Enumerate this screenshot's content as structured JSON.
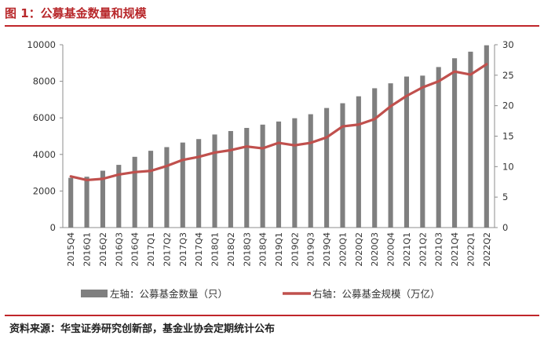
{
  "header": {
    "title": "图 1：公募基金数量和规模"
  },
  "footer": {
    "source": "资料来源：华宝证券研究创新部，基金业协会定期统计公布"
  },
  "chart_data": {
    "type": "bar",
    "categories": [
      "2015Q4",
      "2016Q1",
      "2016Q2",
      "2016Q3",
      "2016Q4",
      "2017Q1",
      "2017Q2",
      "2017Q3",
      "2017Q4",
      "2018Q1",
      "2018Q2",
      "2018Q3",
      "2018Q4",
      "2019Q1",
      "2019Q2",
      "2019Q3",
      "2019Q4",
      "2020Q1",
      "2020Q2",
      "2020Q3",
      "2020Q4",
      "2021Q1",
      "2021Q2",
      "2021Q3",
      "2021Q4",
      "2022Q1",
      "2022Q2"
    ],
    "series": [
      {
        "name": "左轴：公募基金数量（只）",
        "type": "bar",
        "axis": "left",
        "color": "#7f7f7f",
        "values": [
          2720,
          2780,
          3110,
          3430,
          3870,
          4200,
          4400,
          4650,
          4840,
          5090,
          5280,
          5450,
          5630,
          5800,
          5980,
          6200,
          6540,
          6800,
          7180,
          7620,
          7890,
          8260,
          8310,
          8780,
          9260,
          9620,
          9970
        ]
      },
      {
        "name": "右轴：公募基金规模（万亿）",
        "type": "line",
        "axis": "right",
        "color": "#c0504d",
        "values": [
          8.4,
          7.8,
          8.0,
          8.7,
          9.1,
          9.3,
          10.1,
          11.1,
          11.6,
          12.3,
          12.7,
          13.3,
          13.0,
          13.9,
          13.5,
          13.9,
          14.8,
          16.6,
          16.9,
          17.8,
          19.9,
          21.6,
          23.0,
          24.0,
          25.6,
          25.1,
          26.8
        ]
      }
    ],
    "y_left": {
      "ylim": [
        0,
        10000
      ],
      "ticks": [
        "0",
        "2000",
        "4000",
        "6000",
        "8000",
        "10000"
      ]
    },
    "y_right": {
      "ylim": [
        0,
        30
      ],
      "ticks": [
        "0",
        "5",
        "10",
        "15",
        "20",
        "25",
        "30"
      ]
    },
    "legend": "bottom",
    "grid": false
  }
}
